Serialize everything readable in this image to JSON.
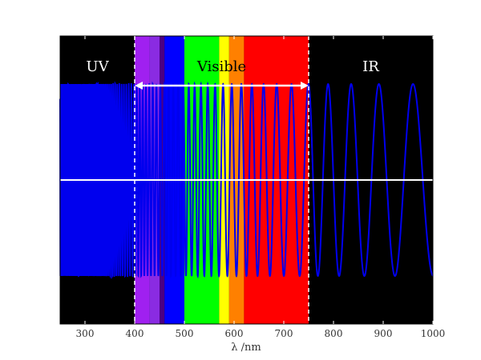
{
  "chart_data": {
    "type": "line",
    "title": "",
    "xlabel": "λ /nm",
    "ylabel": "",
    "xlim": [
      250,
      1000
    ],
    "ylim": [
      -1.5,
      1.5
    ],
    "xticks": [
      300,
      400,
      500,
      600,
      700,
      800,
      900,
      1000
    ],
    "grid": false,
    "background_color": "#000000",
    "wave_color": "#0000ee",
    "axis_line_color": "#ffffff",
    "boundary_color": "#ffffff",
    "visible_range": [
      400,
      750
    ],
    "region_labels": [
      {
        "text": "UV",
        "x": 325,
        "color": "#ffffff"
      },
      {
        "text": "Visible",
        "x": 575,
        "color": "#000000"
      },
      {
        "text": "IR",
        "x": 875,
        "color": "#ffffff"
      }
    ],
    "spectrum_bands": [
      {
        "from": 400,
        "to": 430,
        "color": "#a020f0"
      },
      {
        "from": 430,
        "to": 450,
        "color": "#8a2be2"
      },
      {
        "from": 450,
        "to": 460,
        "color": "#4b0082"
      },
      {
        "from": 460,
        "to": 500,
        "color": "#0000ff"
      },
      {
        "from": 500,
        "to": 570,
        "color": "#00ff00"
      },
      {
        "from": 570,
        "to": 590,
        "color": "#ffff00"
      },
      {
        "from": 590,
        "to": 620,
        "color": "#ff8000"
      },
      {
        "from": 620,
        "to": 750,
        "color": "#ff0000"
      }
    ],
    "series": [
      {
        "x_from": 250,
        "x_to": 400,
        "amplitude": 1.0,
        "function": "sin(2*pi*(lambda_ref/x)^2)"
      },
      {
        "x_from": 400,
        "x_to": 1000,
        "amplitude": 1.0,
        "function": "sin(2*pi*(lambda_ref/x)^2)"
      }
    ],
    "lambda_ref": 2400,
    "annotations": [
      {
        "type": "double_arrow",
        "from": 400,
        "to": 750,
        "y": 1.0,
        "color": "#ffffff"
      }
    ]
  }
}
